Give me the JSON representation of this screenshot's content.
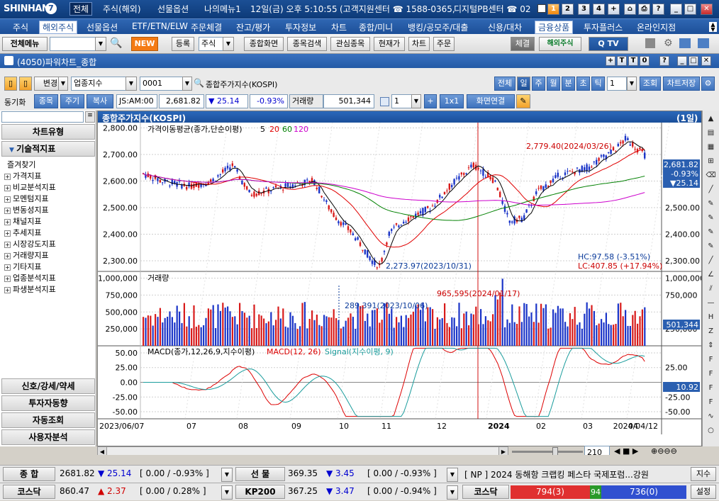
{
  "app": {
    "logo": "SHINHAN",
    "tabs": [
      "전체",
      "주식(해외)",
      "선물옵션",
      "나의메뉴1"
    ],
    "datetime": "12일(금) 오후 5:10:55",
    "center1": "(고객지원센터 ☎ 1588-0365,",
    "center2": "디지털PB센터 ☎ 02",
    "winbtns": [
      "1",
      "2",
      "3",
      "4",
      "+",
      "⌂",
      "⎙",
      "?",
      "_",
      "□",
      "✕"
    ]
  },
  "menu": [
    "주식",
    "해외주식",
    "선물옵션",
    "ETF/ETN/ELW",
    "주문체결",
    "잔고/평가",
    "투자정보",
    "차트",
    "종합/미니",
    "뱅킹/공모주/대출",
    "신용/대차",
    "금융상품",
    "투자플러스",
    "온라인지점"
  ],
  "toolbar": {
    "allmenu": "전체메뉴",
    "new": "NEW",
    "buttons": [
      "등록",
      "주식",
      "종합화면",
      "종목검색",
      "관심종목",
      "현재가",
      "차트",
      "주문"
    ],
    "right": [
      "체결",
      "해외주식"
    ]
  },
  "window": {
    "title": "(4050)파워차트_종합",
    "ctrlbtns": [
      "+",
      "T",
      "T",
      "0",
      "?",
      "_",
      "□",
      "✕"
    ]
  },
  "ctrl": {
    "change": "변경",
    "category": "업종지수",
    "code": "0001",
    "name": "종합주가지수(KOSPI)",
    "periods": [
      "전체",
      "일",
      "주",
      "월",
      "분",
      "초",
      "틱"
    ],
    "period_selected": "일",
    "count": "1",
    "inquire": "조회",
    "save": "차트저장"
  },
  "ctrl2": {
    "sync": "동기화",
    "opts": [
      "종목",
      "주기",
      "복사"
    ],
    "market": "JS:AM:00",
    "price": "2,681.82",
    "change": "▼ 25.14",
    "pct": "-0.93%",
    "vol_label": "거래량",
    "volume": "501,344",
    "spin": "1",
    "layout": "1x1",
    "link": "화면연결"
  },
  "sidebar": {
    "search_placeholder": "",
    "h1": "차트유형",
    "h2": "기술적지표",
    "fav": "즐겨찾기",
    "items": [
      "가격지표",
      "비교분석지표",
      "모멘텀지표",
      "변동성지표",
      "채널지표",
      "추세지표",
      "시장강도지표",
      "거래량지표",
      "기타지표",
      "업종분석지표",
      "파생분석지표"
    ],
    "bottom": [
      "신호/강세/약세",
      "투자자동향",
      "자동조회",
      "사용자분석"
    ]
  },
  "chart": {
    "header": "종합주가지수(KOSPI)",
    "period_badge": "(1일)",
    "price_title": "가격이동평균(종가,단순이평)",
    "ma_periods": [
      "5",
      "20",
      "60",
      "120"
    ],
    "hi_label": "2,779.40(2024/03/26)",
    "lo_label": "2,273.97(2023/10/31)",
    "hc": "HC:97.58 (-3.51%)",
    "lc": "LC:407.85 (+17.94%)",
    "cur_price": "2,681.82",
    "cur_pct": "-0.93%",
    "cur_chg": "▼25.14",
    "vol_title": "거래량",
    "vol_hi": "965,595(2024/01/17)",
    "vol_lo": "289,391(2023/10/06)",
    "cur_vol": "501,344",
    "macd_title": "MACD(종가,12,26,9,지수이평)",
    "macd_label": "MACD(12, 26)",
    "signal_label": "Signal(지수이평, 9)",
    "cur_macd": "10.92",
    "date_labels": [
      "2023/06/07",
      "07",
      "08",
      "09",
      "10",
      "11",
      "12",
      "2024",
      "02",
      "03",
      "04",
      "2024/04/12"
    ],
    "price_ticks": [
      "2,800.00",
      "2,700.00",
      "2,600.00",
      "2,500.00",
      "2,400.00",
      "2,300.00"
    ],
    "price_ticks_r": [
      "2,600.00",
      "2,500.00",
      "2,400.00",
      "2,300.00"
    ],
    "vol_ticks": [
      "1,000,000",
      "750,000",
      "500,000",
      "250,000"
    ],
    "vol_ticks_r": [
      "1,000,000",
      "750,000",
      "250,000"
    ],
    "macd_ticks": [
      "50.00",
      "25.00",
      "0.00",
      "-25.00",
      "-50.00"
    ],
    "macd_ticks_r": [
      "25.00",
      "-25.00",
      "-50.00"
    ],
    "zoom": "210"
  },
  "colors": {
    "up": "#d81b1b",
    "down": "#1b35c8",
    "ma5": "#000000",
    "ma20": "#e00000",
    "ma60": "#008000",
    "ma120": "#cc00cc"
  },
  "ticker": {
    "r1": [
      {
        "label": "종  합",
        "price": "2681.82",
        "chg": "▼ 25.14",
        "rng": "[ 0.00  / -0.93% ]"
      },
      {
        "label": "선  물",
        "price": "369.35",
        "chg": "▼ 3.45",
        "rng": "[ 0.00  / -0.93% ]"
      }
    ],
    "r2": [
      {
        "label": "코스닥",
        "price": "860.47",
        "chg": "▲ 2.37",
        "rng": "[ 0.00  / 0.28% ]"
      },
      {
        "label": "KP200",
        "price": "367.25",
        "chg": "▼ 3.47",
        "rng": "[ 0.00  / -0.94% ]"
      }
    ],
    "news": "[ NP ] 2024 동해항 크랩킹 페스타 국제포럼...강원",
    "news_btn": "지수",
    "kosdaq_lbl": "코스닥",
    "adv": "794(3)",
    "unch": "94",
    "dec": "736(0)",
    "setting": "설정"
  }
}
